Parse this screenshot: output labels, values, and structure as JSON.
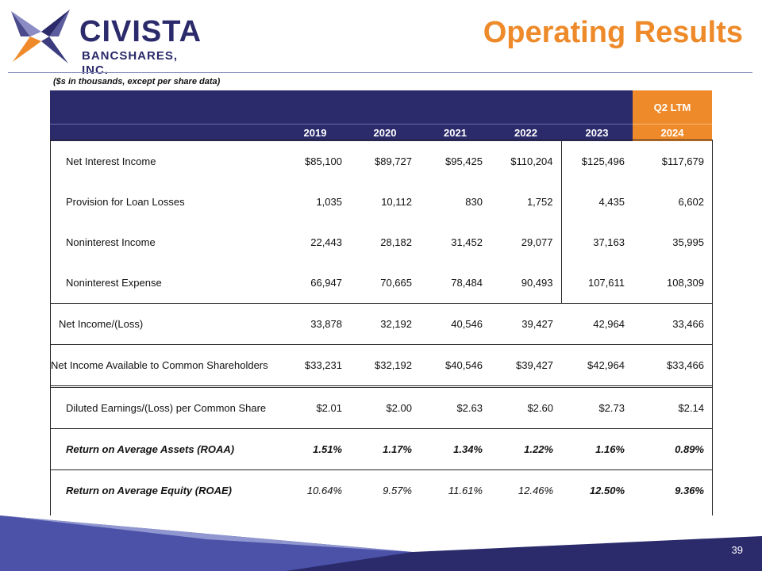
{
  "brand": {
    "name": "CIVISTA",
    "sub": "BANCSHARES, INC.",
    "primary": "#2b2a6b",
    "accent": "#ee8a29",
    "logo_icon": "star-icon"
  },
  "title": "Operating Results",
  "note": "($s in thousands, except per share data)",
  "table": {
    "ltm_label": "Q2 LTM",
    "years": [
      "2019",
      "2020",
      "2021",
      "2022",
      "2023",
      "2024"
    ],
    "rows": [
      {
        "label": "Net Interest Income",
        "values": [
          "$85,100",
          "$89,727",
          "$95,425",
          "$110,204",
          "$125,496",
          "$117,679"
        ]
      },
      {
        "label": "Provision for Loan Losses",
        "values": [
          "1,035",
          "10,112",
          "830",
          "1,752",
          "4,435",
          "6,602"
        ]
      },
      {
        "label": "Noninterest Income",
        "values": [
          "22,443",
          "28,182",
          "31,452",
          "29,077",
          "37,163",
          "35,995"
        ]
      },
      {
        "label": "Noninterest Expense",
        "values": [
          "66,947",
          "70,665",
          "78,484",
          "90,493",
          "107,611",
          "108,309"
        ]
      },
      {
        "label": "Net Income/(Loss)",
        "values": [
          "33,878",
          "32,192",
          "40,546",
          "39,427",
          "42,964",
          "33,466"
        ]
      },
      {
        "label": "Net Income Available to Common Shareholders",
        "values": [
          "$33,231",
          "$32,192",
          "$40,546",
          "$39,427",
          "$42,964",
          "$33,466"
        ]
      },
      {
        "label": "Diluted Earnings/(Loss) per Common Share",
        "values": [
          "$2.01",
          "$2.00",
          "$2.63",
          "$2.60",
          "$2.73",
          "$2.14"
        ]
      },
      {
        "label": "Return on Average Assets (ROAA)",
        "values": [
          "1.51%",
          "1.17%",
          "1.34%",
          "1.22%",
          "1.16%",
          "0.89%"
        ]
      },
      {
        "label": "Return on Average Equity (ROAE)",
        "values": [
          "10.64%",
          "9.57%",
          "11.61%",
          "12.46%",
          "12.50%",
          "9.36%"
        ]
      }
    ]
  },
  "page_number": "39"
}
